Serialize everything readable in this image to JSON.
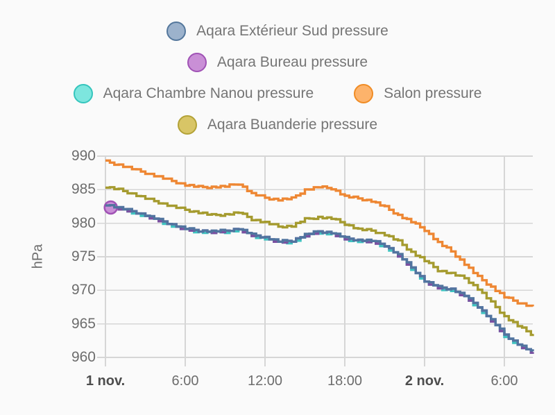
{
  "page": {
    "background": "#fafafa",
    "grid_color": "#d6d6d6"
  },
  "chart_data": {
    "type": "line",
    "title": "",
    "ylabel": "hPa",
    "ylim": [
      960,
      990
    ],
    "xlim_hours": [
      0,
      32.14
    ],
    "grid": true,
    "legend_position": "top-center",
    "y_ticks": [
      990,
      985,
      980,
      975,
      970,
      965,
      960
    ],
    "x_ticks": [
      {
        "label": "1 nov.",
        "hour": 0,
        "bold": true
      },
      {
        "label": "6:00",
        "hour": 6,
        "bold": false
      },
      {
        "label": "12:00",
        "hour": 12,
        "bold": false
      },
      {
        "label": "18:00",
        "hour": 18,
        "bold": false
      },
      {
        "label": "2 nov.",
        "hour": 24,
        "bold": true
      },
      {
        "label": "6:00",
        "hour": 30,
        "bold": false
      }
    ],
    "x_hours": [
      0,
      1,
      2,
      3,
      4,
      5,
      6,
      7,
      8,
      9,
      10,
      11,
      12,
      13,
      14,
      15,
      16,
      17,
      18,
      19,
      20,
      21,
      22,
      23,
      24,
      25,
      26,
      27,
      28,
      29,
      30,
      31,
      32
    ],
    "series": [
      {
        "name": "Aqara Extérieur Sud pressure",
        "line_color": "#51749f",
        "legend_fill": "#9cb2cc",
        "legend_border": "#54779c",
        "values": [
          982.8,
          982.3,
          981.8,
          981.2,
          980.5,
          979.8,
          979.2,
          978.9,
          978.8,
          978.9,
          979.2,
          978.3,
          977.9,
          977.3,
          977.4,
          978.3,
          978.8,
          978.6,
          977.8,
          977.5,
          977.4,
          976.7,
          975.3,
          973.4,
          971.4,
          970.5,
          970.2,
          969.2,
          967.6,
          965.6,
          963.4,
          962.0,
          960.9
        ]
      },
      {
        "name": "Aqara Bureau pressure",
        "line_color": "#7b4fa0",
        "legend_fill": "#c98fd6",
        "legend_border": "#a052b5",
        "marker": {
          "hour": 0.4,
          "value": 982.35
        },
        "values": [
          982.4,
          982.2,
          981.7,
          981.1,
          980.4,
          979.7,
          979.1,
          978.8,
          978.7,
          978.8,
          979.1,
          978.2,
          977.8,
          977.2,
          977.3,
          978.2,
          978.7,
          978.5,
          977.7,
          977.4,
          977.3,
          976.6,
          975.2,
          973.3,
          971.3,
          970.4,
          970.1,
          969.1,
          967.5,
          965.5,
          963.3,
          961.9,
          960.8
        ]
      },
      {
        "name": "Aqara Chambre Nanou pressure",
        "line_color": "#3fc3c0",
        "legend_fill": "#7de6de",
        "legend_border": "#35c5bd",
        "values": [
          982.6,
          982.1,
          981.6,
          981.0,
          980.3,
          979.6,
          979.0,
          978.7,
          978.6,
          978.7,
          979.0,
          978.1,
          977.7,
          977.1,
          977.2,
          978.1,
          978.6,
          978.4,
          977.6,
          977.3,
          977.2,
          976.5,
          975.1,
          973.2,
          971.2,
          970.3,
          970.0,
          969.0,
          967.4,
          965.4,
          963.2,
          961.8,
          960.7
        ]
      },
      {
        "name": "Salon pressure",
        "line_color": "#ee8733",
        "legend_fill": "#fdb36b",
        "legend_border": "#f08c25",
        "values": [
          989.2,
          988.7,
          988.1,
          987.5,
          986.9,
          986.3,
          985.7,
          985.4,
          985.4,
          985.5,
          985.9,
          984.4,
          983.8,
          983.5,
          983.7,
          985.0,
          985.4,
          985.2,
          984.0,
          983.7,
          983.3,
          982.4,
          981.2,
          980.2,
          979.0,
          977.1,
          975.8,
          973.9,
          972.0,
          970.5,
          969.0,
          968.2,
          967.6
        ]
      },
      {
        "name": "Aqara Buanderie pressure",
        "line_color": "#a59b2f",
        "legend_fill": "#d8c566",
        "legend_border": "#b3a237",
        "values": [
          985.4,
          985.0,
          984.4,
          983.7,
          983.1,
          982.5,
          982.0,
          981.6,
          981.2,
          981.3,
          981.6,
          980.6,
          980.1,
          979.5,
          979.6,
          980.6,
          980.9,
          980.7,
          979.9,
          979.1,
          978.9,
          978.3,
          977.3,
          975.7,
          974.4,
          973.0,
          972.5,
          971.8,
          970.2,
          968.2,
          966.1,
          964.7,
          963.5
        ]
      }
    ],
    "legend_rows": [
      [
        0
      ],
      [
        1
      ],
      [
        2,
        3
      ],
      [
        4
      ]
    ],
    "draw_order": [
      2,
      1,
      0,
      4,
      3
    ]
  }
}
